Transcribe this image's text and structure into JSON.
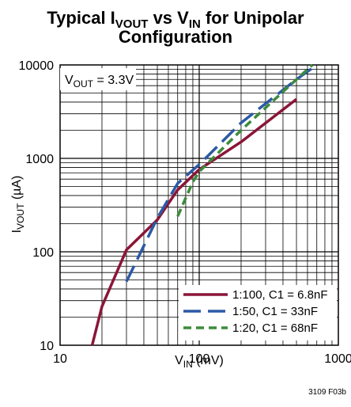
{
  "chart_data": {
    "type": "line",
    "title": {
      "line1_prefix": "Typical I",
      "line1_sub1": "VOUT",
      "line1_mid": " vs V",
      "line1_sub2": "IN",
      "line1_suffix": " for Unipolar",
      "line2": "Configuration"
    },
    "xlabel": {
      "main": "V",
      "sub": "IN",
      "rest": " (mV)"
    },
    "ylabel": {
      "main": "I",
      "sub": "VOUT",
      "rest": " (µA)"
    },
    "x_scale": "log",
    "y_scale": "log",
    "xlim": [
      10,
      1000
    ],
    "ylim": [
      10,
      10000
    ],
    "x_ticks": [
      10,
      100,
      1000
    ],
    "x_tick_labels": [
      "10",
      "100",
      "1000"
    ],
    "y_ticks": [
      10,
      100,
      1000,
      10000
    ],
    "y_tick_labels": [
      "10",
      "100",
      "1000",
      "10000"
    ],
    "grid": true,
    "annotation": {
      "main": "V",
      "sub": "OUT",
      "rest": " = 3.3V"
    },
    "legend_position": "bottom-right",
    "series": [
      {
        "name": "1:100, C1 = 6.8nF",
        "color": "#8b1538",
        "dash": "solid",
        "points": [
          [
            17,
            10
          ],
          [
            20,
            26
          ],
          [
            30,
            105
          ],
          [
            50,
            220
          ],
          [
            70,
            460
          ],
          [
            100,
            760
          ],
          [
            200,
            1500
          ],
          [
            500,
            4300
          ]
        ]
      },
      {
        "name": "1:50, C1 = 33nF",
        "color": "#2b5aa5",
        "dash": "long-dash",
        "points": [
          [
            30,
            48
          ],
          [
            50,
            230
          ],
          [
            70,
            540
          ],
          [
            100,
            860
          ],
          [
            200,
            2400
          ],
          [
            500,
            7000
          ],
          [
            700,
            10000
          ]
        ]
      },
      {
        "name": "1:20, C1 = 68nF",
        "color": "#3c8b3c",
        "dash": "short-dash",
        "points": [
          [
            70,
            240
          ],
          [
            90,
            560
          ],
          [
            100,
            720
          ],
          [
            200,
            2000
          ],
          [
            500,
            7000
          ],
          [
            650,
            10000
          ]
        ]
      }
    ],
    "figure_number": "3109 F03b"
  }
}
